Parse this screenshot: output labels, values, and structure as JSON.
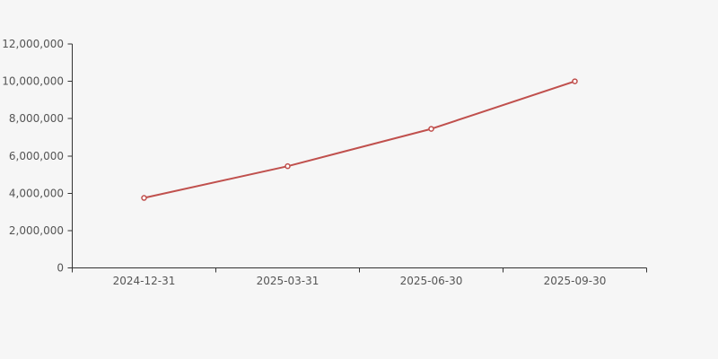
{
  "chart_data": {
    "type": "line",
    "title": "",
    "xlabel": "",
    "ylabel": "",
    "categories": [
      "2024-12-31",
      "2025-03-31",
      "2025-06-30",
      "2025-09-30"
    ],
    "series": [
      {
        "name": "value",
        "values": [
          3750000,
          5450000,
          7450000,
          10000000
        ]
      }
    ],
    "ylim": [
      0,
      12000000
    ],
    "y_tick_step": 2000000,
    "y_tick_values": [
      0,
      2000000,
      4000000,
      6000000,
      8000000,
      10000000,
      12000000
    ],
    "y_tick_labels": [
      "0",
      "2,000,000",
      "4,000,000",
      "6,000,000",
      "8,000,000",
      "10,000,000",
      "12,000,000"
    ],
    "grid": false,
    "legend": false,
    "marker": "hollow-circle",
    "colors": {
      "background": "#f6f6f6",
      "line": "#c0504d",
      "marker_fill": "#ffffff",
      "axis": "#333333",
      "label": "#555555"
    }
  }
}
